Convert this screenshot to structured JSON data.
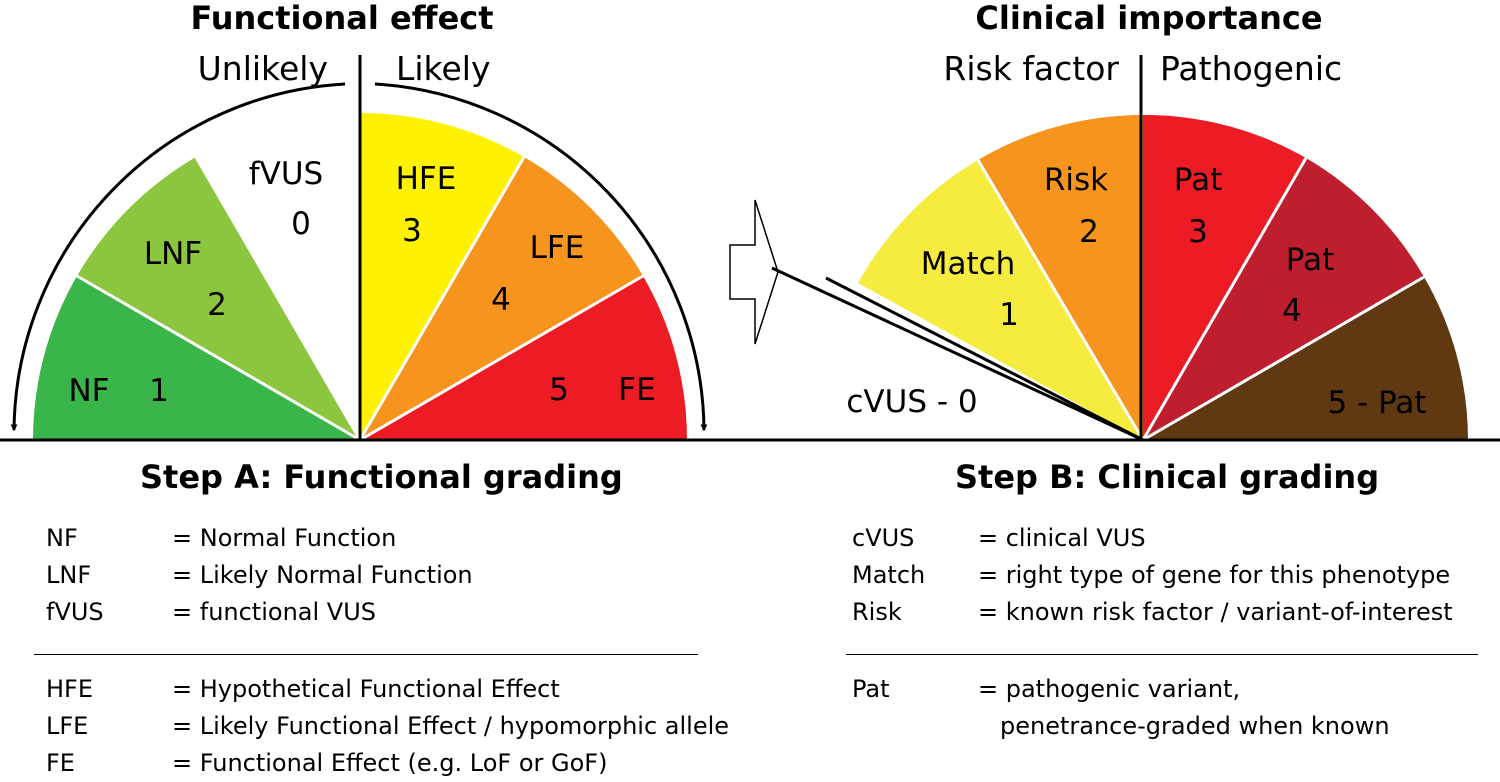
{
  "left": {
    "title": "Functional effect",
    "side_left": "Unlikely",
    "side_right": "Likely",
    "segments": [
      {
        "label": "NF",
        "num": "1",
        "color": "#3ab54a"
      },
      {
        "label": "LNF",
        "num": "2",
        "color": "#8cc63f"
      },
      {
        "label": "fVUS",
        "num": "0",
        "color": "#ffffff"
      },
      {
        "label": "HFE",
        "num": "3",
        "color": "#fff200"
      },
      {
        "label": "LFE",
        "num": "4",
        "color": "#f7941d"
      },
      {
        "label": "FE",
        "num": "5",
        "color": "#ed1c24"
      }
    ]
  },
  "right": {
    "title": "Clinical importance",
    "side_left": "Risk factor",
    "side_right": "Pathogenic",
    "segments": [
      {
        "label": "cVUS - 0",
        "color": "#ffffff"
      },
      {
        "label": "Match",
        "num": "1",
        "color": "#f5ec3f"
      },
      {
        "label": "Risk",
        "num": "2",
        "color": "#f7941d"
      },
      {
        "label": "Pat",
        "num": "3",
        "color": "#ed1c24"
      },
      {
        "label": "Pat",
        "num": "4",
        "color": "#be1e2d"
      },
      {
        "label": "5 - Pat",
        "color": "#603913"
      }
    ]
  },
  "step_a": {
    "title": "Step A: Functional grading",
    "group1": [
      {
        "abbr": "NF",
        "desc": "= Normal Function"
      },
      {
        "abbr": "LNF",
        "desc": "= Likely Normal Function"
      },
      {
        "abbr": "fVUS",
        "desc": "= functional VUS"
      }
    ],
    "group2": [
      {
        "abbr": "HFE",
        "desc": "= Hypothetical Functional Effect"
      },
      {
        "abbr": "LFE",
        "desc": "= Likely Functional Effect / hypomorphic allele"
      },
      {
        "abbr": "FE",
        "desc": "= Functional Effect (e.g. LoF or GoF)"
      }
    ]
  },
  "step_b": {
    "title": "Step B: Clinical grading",
    "group1": [
      {
        "abbr": "cVUS",
        "desc": "= clinical VUS"
      },
      {
        "abbr": "Match",
        "desc": "= right type of gene for this phenotype"
      },
      {
        "abbr": "Risk",
        "desc": "= known risk factor / variant-of-interest"
      }
    ],
    "group2": [
      {
        "abbr": "Pat",
        "desc": "= pathogenic variant,",
        "desc2": "penetrance-graded when known"
      }
    ]
  }
}
